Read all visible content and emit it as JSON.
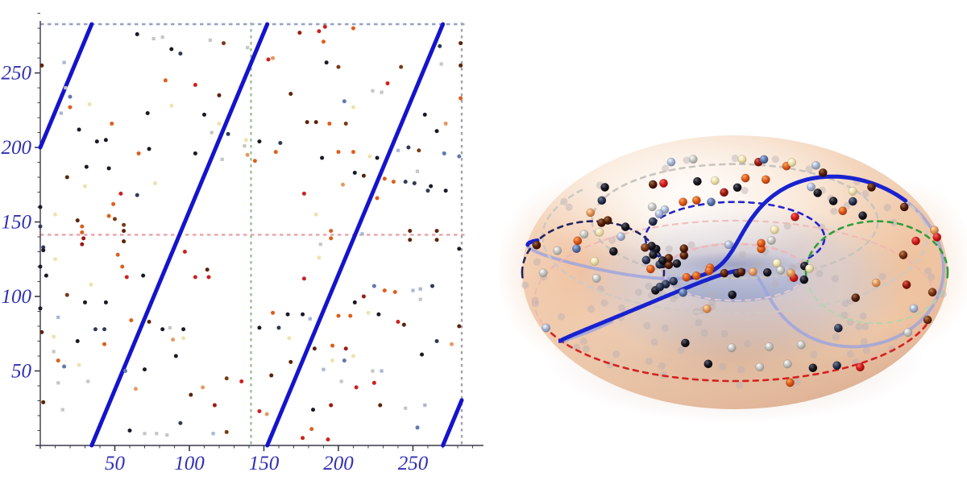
{
  "figure": {
    "description": "Linear flow on a torus: left panel shows the (u,v) coordinate square with a wrapped trajectory line and random sample points; right panel shows the same points and trajectory on a 3D torus",
    "background": "#ffffff"
  },
  "chart_data": [
    {
      "type": "scatter",
      "title": "",
      "xlabel": "",
      "ylabel": "",
      "xlim": [
        0,
        282.74
      ],
      "ylim": [
        0,
        282.74
      ],
      "x_ticks": [
        50,
        100,
        150,
        200,
        250
      ],
      "y_ticks": [
        50,
        100,
        150,
        200,
        250
      ],
      "tick_label_color": "#2f2fb4",
      "axis_color": "#3a3a4a",
      "grid": false,
      "legend": null,
      "guides": {
        "horizontal": [
          {
            "v": 141.37,
            "color": "#e9a6ac",
            "style": "dashed"
          },
          {
            "v": 282.74,
            "color": "#97a0c8",
            "style": "dashed"
          }
        ],
        "vertical": [
          {
            "u": 141.37,
            "color": "#9dbf9b",
            "style": "dashed"
          },
          {
            "u": 282.74,
            "color": "#a8a0ac",
            "style": "dashed"
          }
        ]
      },
      "trajectory": {
        "start_u": 0,
        "start_v": 200,
        "slope": 2.4,
        "period": 282.74,
        "color": "#1414cc",
        "width": 5
      },
      "palette": {
        "k": "#1a1a26",
        "n": "#2e3a55",
        "sb": "#6079ad",
        "lb": "#a9b6d6",
        "gy": "#c6c6c2",
        "cr": "#efe2ae",
        "lo": "#e59a62",
        "o": "#dd5f1d",
        "r": "#cf2020",
        "dr": "#9b1b12",
        "br": "#7a3b16",
        "db": "#5a2408"
      },
      "points": [
        [
          1,
          255,
          "db"
        ],
        [
          16,
          257,
          "lb"
        ],
        [
          65,
          276,
          "k"
        ],
        [
          76,
          273,
          "gy"
        ],
        [
          82,
          274,
          "gy"
        ],
        [
          88,
          266,
          "k"
        ],
        [
          114,
          272,
          "gy"
        ],
        [
          123,
          270,
          "br"
        ],
        [
          94,
          263,
          "n"
        ],
        [
          20,
          234,
          "sb"
        ],
        [
          17,
          240,
          "gy"
        ],
        [
          33,
          229,
          "cr"
        ],
        [
          14,
          223,
          "lb"
        ],
        [
          20,
          227,
          "o"
        ],
        [
          26,
          212,
          "k"
        ],
        [
          38,
          204,
          "k"
        ],
        [
          44,
          205,
          "k"
        ],
        [
          31,
          187,
          "k"
        ],
        [
          46,
          186,
          "k"
        ],
        [
          18,
          180,
          "db"
        ],
        [
          30,
          174,
          "cr"
        ],
        [
          54,
          169,
          "r"
        ],
        [
          65,
          168,
          "n"
        ],
        [
          49,
          162,
          "o"
        ],
        [
          46,
          154,
          "o"
        ],
        [
          10,
          155,
          "cr"
        ],
        [
          84,
          245,
          "o"
        ],
        [
          104,
          242,
          "r"
        ],
        [
          120,
          235,
          "db"
        ],
        [
          110,
          222,
          "k"
        ],
        [
          48,
          216,
          "o"
        ],
        [
          120,
          216,
          "cr"
        ],
        [
          115,
          210,
          "gy"
        ],
        [
          126,
          209,
          "n"
        ],
        [
          104,
          196,
          "k"
        ],
        [
          122,
          192,
          "gy"
        ],
        [
          66,
          196,
          "o"
        ],
        [
          72,
          223,
          "k"
        ],
        [
          88,
          228,
          "cr"
        ],
        [
          73,
          199,
          "k"
        ],
        [
          77,
          176,
          "cr"
        ],
        [
          0,
          160,
          "k"
        ],
        [
          0,
          147,
          "n"
        ],
        [
          2,
          133,
          "n"
        ],
        [
          0,
          120,
          "k"
        ],
        [
          0,
          92,
          "k"
        ],
        [
          1,
          76,
          "db"
        ],
        [
          28,
          147,
          "o"
        ],
        [
          28,
          143,
          "o"
        ],
        [
          29,
          139,
          "dr"
        ],
        [
          28,
          135,
          "dr"
        ],
        [
          25,
          151,
          "db"
        ],
        [
          50,
          152,
          "br"
        ],
        [
          56,
          148,
          "br"
        ],
        [
          56,
          144,
          "db"
        ],
        [
          56,
          137,
          "db"
        ],
        [
          139,
          267,
          "gy"
        ],
        [
          137,
          201,
          "gy"
        ],
        [
          144,
          191,
          "o"
        ],
        [
          138,
          205,
          "cr"
        ],
        [
          139,
          195,
          "lo"
        ],
        [
          174,
          277,
          "dr"
        ],
        [
          187,
          278,
          "r"
        ],
        [
          190,
          271,
          "o"
        ],
        [
          153,
          259,
          "r"
        ],
        [
          156,
          260,
          "lo"
        ],
        [
          192,
          257,
          "k"
        ],
        [
          200,
          254,
          "br"
        ],
        [
          242,
          254,
          "br"
        ],
        [
          268,
          268,
          "n"
        ],
        [
          269,
          256,
          "gy"
        ],
        [
          282,
          255,
          "db"
        ],
        [
          233,
          243,
          "r"
        ],
        [
          168,
          236,
          "db"
        ],
        [
          223,
          238,
          "gy"
        ],
        [
          229,
          237,
          "gy"
        ],
        [
          204,
          231,
          "sb"
        ],
        [
          210,
          227,
          "cr"
        ],
        [
          258,
          222,
          "k"
        ],
        [
          272,
          216,
          "lo"
        ],
        [
          266,
          211,
          "k"
        ],
        [
          179,
          217,
          "db"
        ],
        [
          185,
          217,
          "db"
        ],
        [
          194,
          216,
          "o"
        ],
        [
          205,
          216,
          "br"
        ],
        [
          147,
          204,
          "k"
        ],
        [
          161,
          203,
          "n"
        ],
        [
          158,
          197,
          "o"
        ],
        [
          200,
          197,
          "o"
        ],
        [
          210,
          197,
          "o"
        ],
        [
          189,
          193,
          "k"
        ],
        [
          221,
          194,
          "cr"
        ],
        [
          226,
          193,
          "k"
        ],
        [
          240,
          198,
          "lb"
        ],
        [
          247,
          200,
          "n"
        ],
        [
          254,
          198,
          "br"
        ],
        [
          271,
          196,
          "sb"
        ],
        [
          281,
          194,
          "sb"
        ],
        [
          253,
          184,
          "gy"
        ],
        [
          245,
          177,
          "n"
        ],
        [
          251,
          176,
          "n"
        ],
        [
          262,
          174,
          "k"
        ],
        [
          231,
          179,
          "o"
        ],
        [
          237,
          177,
          "o"
        ],
        [
          211,
          183,
          "k"
        ],
        [
          217,
          181,
          "db"
        ],
        [
          203,
          175,
          "lo"
        ],
        [
          260,
          171,
          "n"
        ],
        [
          272,
          171,
          "k"
        ],
        [
          177,
          169,
          "r"
        ],
        [
          226,
          166,
          "o"
        ],
        [
          185,
          155,
          "cr"
        ],
        [
          282,
          270,
          "db"
        ],
        [
          210,
          280,
          "o"
        ],
        [
          191,
          281,
          "r"
        ],
        [
          282,
          233,
          "o"
        ],
        [
          2,
          131,
          "k"
        ],
        [
          10,
          125,
          "cr"
        ],
        [
          52,
          128,
          "o"
        ],
        [
          97,
          130,
          "r"
        ],
        [
          55,
          120,
          "o"
        ],
        [
          58,
          113,
          "r"
        ],
        [
          69,
          114,
          "k"
        ],
        [
          104,
          113,
          "r"
        ],
        [
          113,
          113,
          "r"
        ],
        [
          112,
          118,
          "db"
        ],
        [
          4,
          114,
          "k"
        ],
        [
          18,
          101,
          "br"
        ],
        [
          34,
          108,
          "cr"
        ],
        [
          30,
          96,
          "k"
        ],
        [
          44,
          96,
          "k"
        ],
        [
          37,
          78,
          "n"
        ],
        [
          43,
          78,
          "n"
        ],
        [
          25,
          70,
          "k"
        ],
        [
          61,
          84,
          "o"
        ],
        [
          73,
          83,
          "db"
        ],
        [
          82,
          78,
          "k"
        ],
        [
          87,
          79,
          "gy"
        ],
        [
          96,
          78,
          "k"
        ],
        [
          96,
          72,
          "cr"
        ],
        [
          89,
          71,
          "lo"
        ],
        [
          43,
          68,
          "o"
        ],
        [
          9,
          63,
          "gy"
        ],
        [
          16,
          53,
          "sb"
        ],
        [
          26,
          54,
          "cr"
        ],
        [
          12,
          57,
          "o"
        ],
        [
          12,
          42,
          "gy"
        ],
        [
          32,
          43,
          "gy"
        ],
        [
          2,
          29,
          "db"
        ],
        [
          15,
          24,
          "gy"
        ],
        [
          60,
          10,
          "k"
        ],
        [
          70,
          8,
          "gy"
        ],
        [
          78,
          8,
          "gy"
        ],
        [
          85,
          7,
          "gy"
        ],
        [
          64,
          38,
          "lo"
        ],
        [
          94,
          15,
          "n"
        ],
        [
          91,
          60,
          "k"
        ],
        [
          70,
          51,
          "k"
        ],
        [
          101,
          34,
          "db"
        ],
        [
          117,
          27,
          "dr"
        ],
        [
          125,
          9,
          "br"
        ],
        [
          116,
          8,
          "lb"
        ],
        [
          135,
          43,
          "r"
        ],
        [
          12,
          86,
          "lb"
        ],
        [
          9,
          73,
          "cr"
        ],
        [
          125,
          45,
          "br"
        ],
        [
          109,
          39,
          "lo"
        ],
        [
          57,
          50,
          "sb"
        ],
        [
          195,
          144,
          "o"
        ],
        [
          195,
          139,
          "o"
        ],
        [
          188,
          135,
          "gy"
        ],
        [
          216,
          142,
          "lb"
        ],
        [
          248,
          144,
          "db"
        ],
        [
          248,
          138,
          "db"
        ],
        [
          266,
          144,
          "db"
        ],
        [
          266,
          138,
          "db"
        ],
        [
          281,
          132,
          "k"
        ],
        [
          187,
          126,
          "cr"
        ],
        [
          177,
          112,
          "r"
        ],
        [
          224,
          107,
          "sb"
        ],
        [
          231,
          104,
          "o"
        ],
        [
          238,
          103,
          "o"
        ],
        [
          250,
          104,
          "lb"
        ],
        [
          255,
          105,
          "lb"
        ],
        [
          263,
          107,
          "n"
        ],
        [
          255,
          98,
          "gy"
        ],
        [
          211,
          96,
          "k"
        ],
        [
          217,
          100,
          "dr"
        ],
        [
          240,
          83,
          "r"
        ],
        [
          244,
          81,
          "db"
        ],
        [
          227,
          88,
          "k"
        ],
        [
          220,
          89,
          "cr"
        ],
        [
          200,
          87,
          "o"
        ],
        [
          208,
          87,
          "o"
        ],
        [
          181,
          85,
          "lb"
        ],
        [
          156,
          89,
          "o"
        ],
        [
          166,
          88,
          "k"
        ],
        [
          176,
          88,
          "k"
        ],
        [
          147,
          79,
          "k"
        ],
        [
          160,
          79,
          "n"
        ],
        [
          167,
          72,
          "cr"
        ],
        [
          184,
          65,
          "db"
        ],
        [
          196,
          67,
          "o"
        ],
        [
          205,
          65,
          "dr"
        ],
        [
          266,
          70,
          "n"
        ],
        [
          276,
          68,
          "lo"
        ],
        [
          256,
          61,
          "k"
        ],
        [
          204,
          57,
          "sb"
        ],
        [
          210,
          60,
          "cr"
        ],
        [
          168,
          56,
          "db"
        ],
        [
          223,
          50,
          "gy"
        ],
        [
          229,
          50,
          "lb"
        ],
        [
          224,
          42,
          "r"
        ],
        [
          212,
          39,
          "r"
        ],
        [
          228,
          27,
          "db"
        ],
        [
          258,
          27,
          "lb"
        ],
        [
          183,
          24,
          "k"
        ],
        [
          195,
          27,
          "dr"
        ],
        [
          182,
          11,
          "o"
        ],
        [
          176,
          5,
          "r"
        ],
        [
          193,
          4,
          "r"
        ],
        [
          253,
          12,
          "sb"
        ],
        [
          147,
          23,
          "r"
        ],
        [
          152,
          21,
          "lo"
        ],
        [
          281,
          80,
          "db"
        ],
        [
          155,
          47,
          "db"
        ],
        [
          190,
          51,
          "lb"
        ],
        [
          196,
          57,
          "cr"
        ],
        [
          202,
          43,
          "gy"
        ],
        [
          245,
          25,
          "gy"
        ]
      ]
    },
    {
      "type": "3d-torus",
      "title": "",
      "big_radius": 2,
      "tube_radius": 1,
      "surface_colors": {
        "top": "#fdf2e6",
        "mid": "#f6dcc6",
        "edge": "#dfae92",
        "sheen": "#a0acd7",
        "hole_bottom": "#9faacb"
      },
      "uses_points_of_chart": 0,
      "trajectory_color": "#1822cf",
      "trajectory_hidden_color": "#9ba2e0",
      "faded_point_color": "#b7afb4",
      "guides": [
        {
          "type": "parallel",
          "v": 256,
          "color": "#d62020",
          "far_color": "#eeb4b4"
        },
        {
          "type": "parallel",
          "v": 141.37,
          "color": "#efb6bb",
          "far_color": "#f3cdd1"
        },
        {
          "type": "parallel",
          "v": 108,
          "color": "#2323cc",
          "far_color": null
        },
        {
          "type": "parallel",
          "v": 70,
          "color": "#c9c4be",
          "far_color": null
        },
        {
          "type": "parallel",
          "v": 35,
          "color": "#cfc9c3",
          "far_color": null
        },
        {
          "type": "meridian",
          "u": 141.37,
          "color": "#2f9e3f",
          "far_color": "#a8d8ae"
        },
        {
          "type": "meridian",
          "u": 282.74,
          "color": "#232360",
          "far_color": null
        }
      ]
    }
  ]
}
